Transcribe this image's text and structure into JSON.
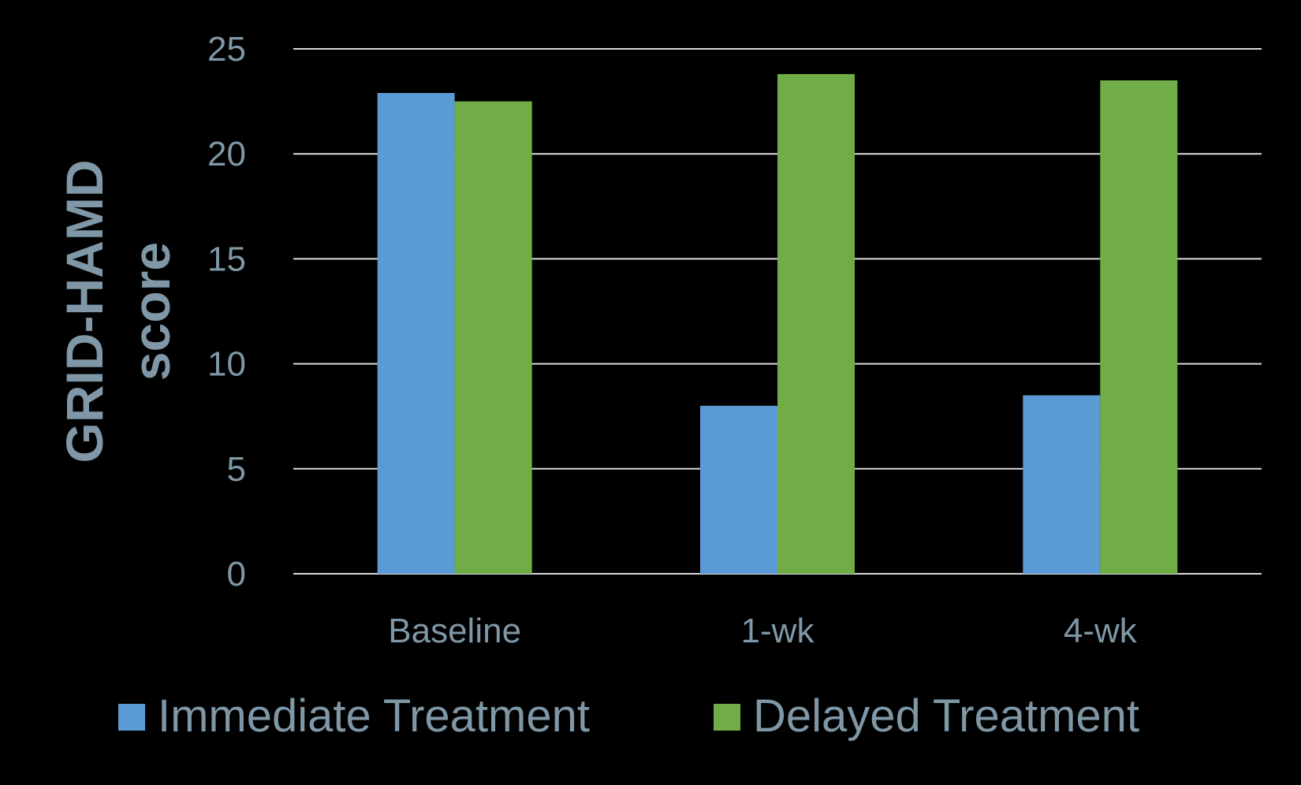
{
  "chart_data": {
    "type": "bar",
    "title": "",
    "xlabel": "",
    "ylabel": [
      "GRID-HAMD",
      "score"
    ],
    "categories": [
      "Baseline",
      "1-wk",
      "4-wk"
    ],
    "series": [
      {
        "name": "Immediate Treatment",
        "values": [
          22.9,
          8.0,
          8.5
        ],
        "color": "#5b9bd5"
      },
      {
        "name": "Delayed Treatment",
        "values": [
          22.5,
          23.8,
          23.5
        ],
        "color": "#70ad47"
      }
    ],
    "ylim": [
      0,
      25
    ],
    "yticks": [
      "0",
      "5",
      "10",
      "15",
      "20",
      "25"
    ],
    "grid": true,
    "legend_position": "bottom",
    "colors": {
      "background": "#000000",
      "text": "#7f97a6",
      "gridline": "#d9d9d9"
    }
  }
}
